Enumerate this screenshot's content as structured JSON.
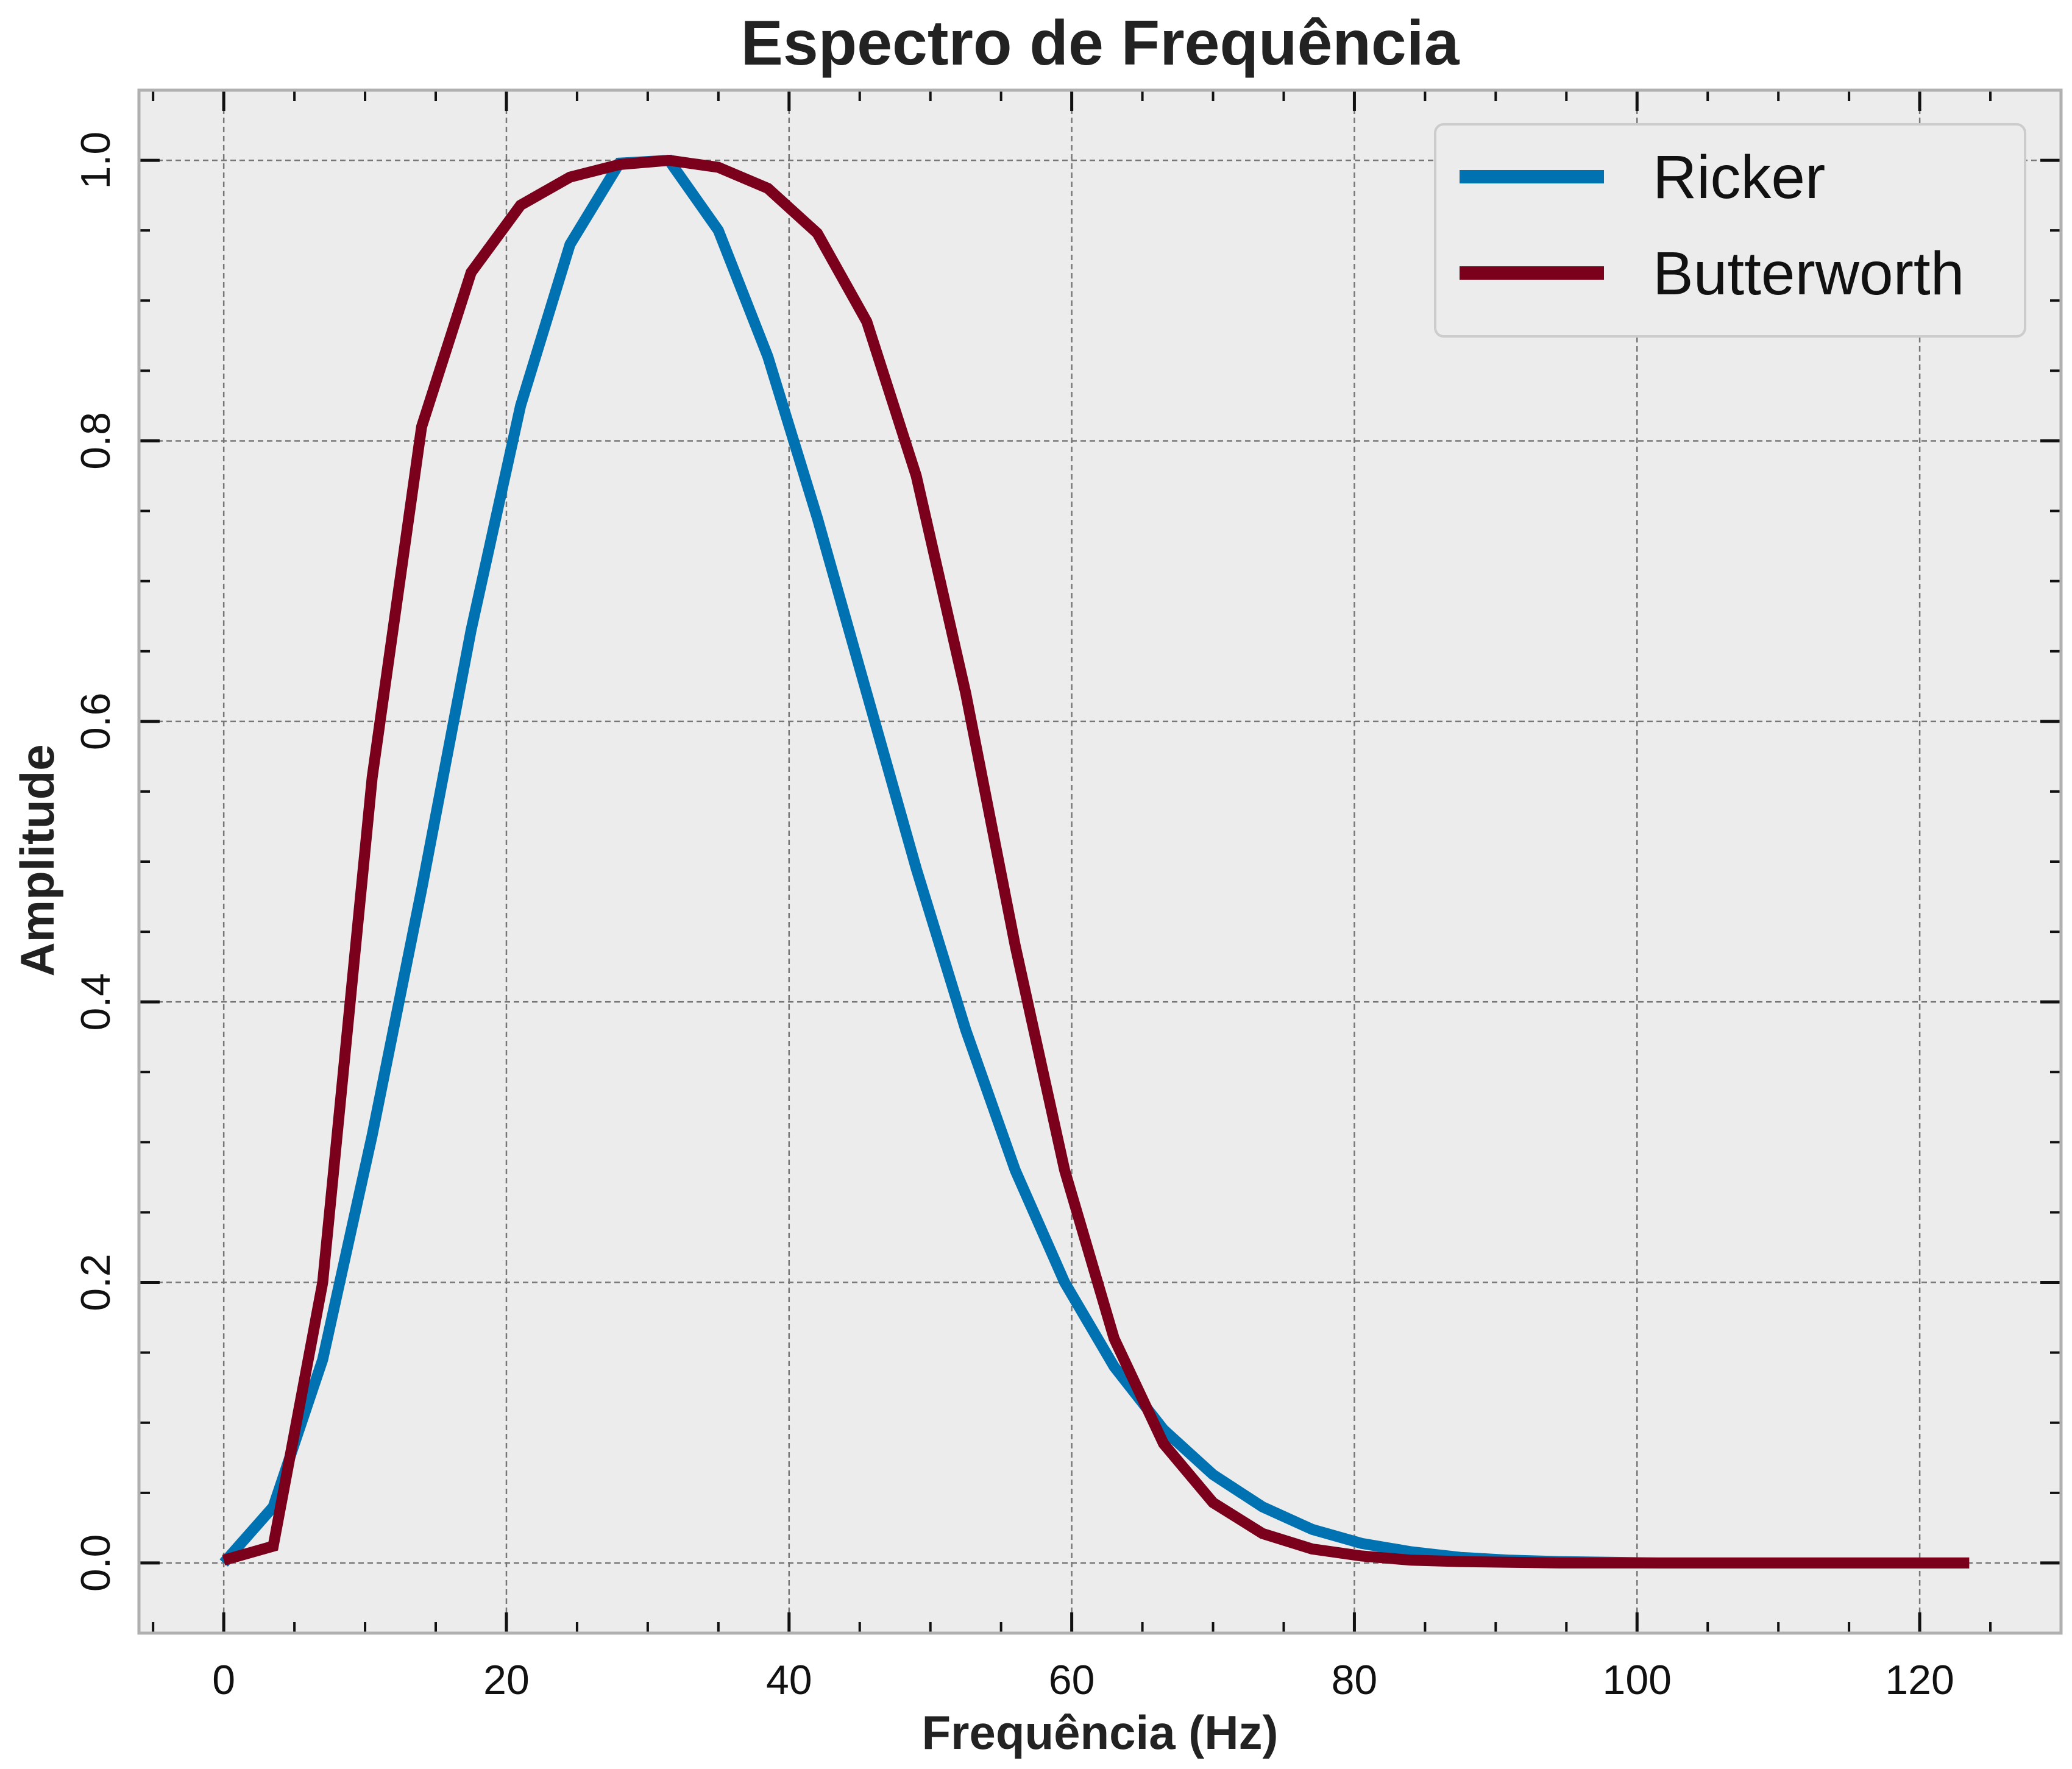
{
  "chart_data": {
    "type": "line",
    "title": "Espectro de Frequência",
    "xlabel": "Frequência (Hz)",
    "ylabel": "Amplitude",
    "xlim": [
      -6,
      130
    ],
    "ylim": [
      -0.05,
      1.05
    ],
    "xticks": [
      0,
      20,
      40,
      60,
      80,
      100,
      120
    ],
    "xtick_labels": [
      "0",
      "20",
      "40",
      "60",
      "80",
      "100",
      "120"
    ],
    "yticks": [
      0.0,
      0.2,
      0.4,
      0.6,
      0.8,
      1.0
    ],
    "ytick_labels": [
      "0.0",
      "0.2",
      "0.4",
      "0.6",
      "0.8",
      "1.0"
    ],
    "grid": true,
    "legend_position": "top-right",
    "x": [
      0,
      3.5,
      7,
      10.5,
      14,
      17.5,
      21,
      24.5,
      28,
      31.5,
      35,
      38.5,
      42,
      45.5,
      49,
      52.5,
      56,
      59.5,
      63,
      66.5,
      70,
      73.5,
      77,
      80.5,
      84,
      87.5,
      91,
      94.5,
      98,
      101.5,
      105,
      108.5,
      112,
      115.5,
      119,
      123.5
    ],
    "series": [
      {
        "name": "Ricker",
        "color": "#0072b2",
        "values": [
          0.0,
          0.04,
          0.145,
          0.305,
          0.48,
          0.665,
          0.825,
          0.94,
          0.998,
          1.0,
          0.95,
          0.86,
          0.745,
          0.62,
          0.495,
          0.38,
          0.28,
          0.2,
          0.14,
          0.095,
          0.063,
          0.04,
          0.024,
          0.014,
          0.008,
          0.004,
          0.002,
          0.001,
          0.0005,
          0.0,
          0.0,
          0.0,
          0.0,
          0.0,
          0.0,
          0.0
        ]
      },
      {
        "name": "Butterworth",
        "color": "#7b001c",
        "values": [
          0.002,
          0.012,
          0.2,
          0.56,
          0.81,
          0.92,
          0.968,
          0.988,
          0.997,
          1.0,
          0.995,
          0.98,
          0.948,
          0.885,
          0.775,
          0.62,
          0.44,
          0.28,
          0.16,
          0.085,
          0.043,
          0.021,
          0.01,
          0.005,
          0.002,
          0.001,
          0.0005,
          0.0,
          0.0,
          0.0,
          0.0,
          0.0,
          0.0,
          0.0,
          0.0,
          0.0
        ]
      }
    ]
  }
}
